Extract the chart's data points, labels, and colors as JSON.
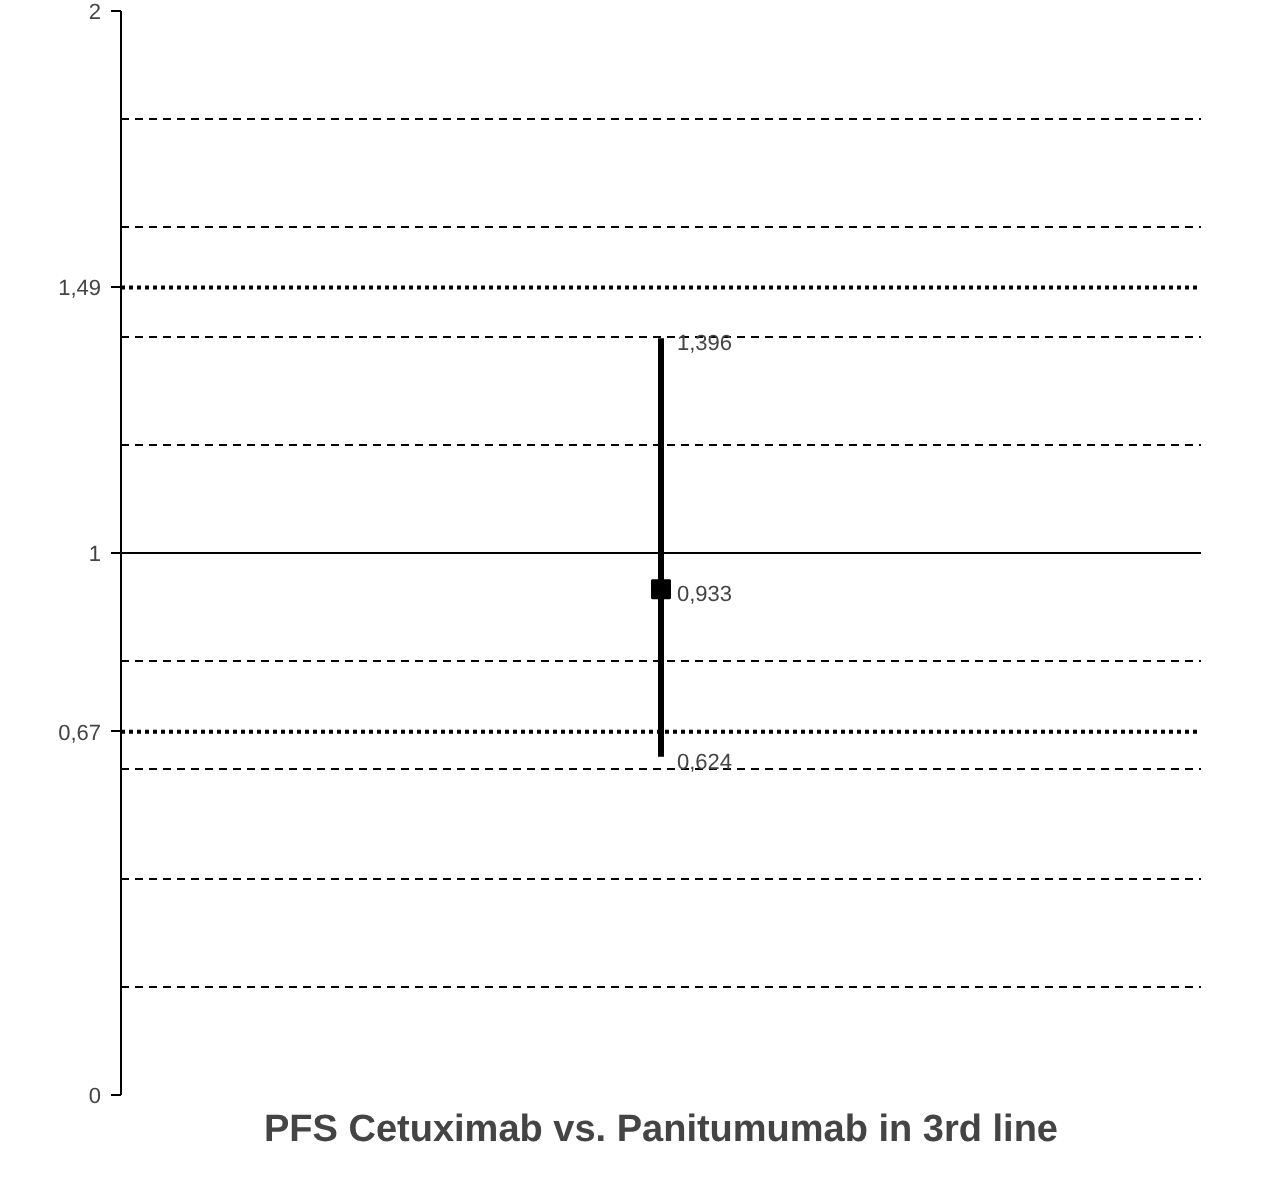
{
  "chart_data": {
    "type": "scatter",
    "title": "PFS Cetuximab vs. Panitumumab in 3rd line",
    "categories": [
      null
    ],
    "values": [
      0.933
    ],
    "errors": [
      [
        0.624,
        1.396
      ]
    ],
    "value_labels": [
      "0,933"
    ],
    "color": "#000000",
    "marker": "square",
    "ylim": [
      0,
      2
    ],
    "yticks": [
      {
        "value": 0,
        "label": "0"
      },
      {
        "value": 0.2,
        "label": null
      },
      {
        "value": 0.4,
        "label": null
      },
      {
        "value": 0.6,
        "label": null
      },
      {
        "value": 0.8,
        "label": null
      },
      {
        "value": 1,
        "label": "1"
      },
      {
        "value": 1.2,
        "label": null
      },
      {
        "value": 1.4,
        "label": null
      },
      {
        "value": 1.6,
        "label": null
      },
      {
        "value": 1.8,
        "label": null
      },
      {
        "value": 2,
        "label": "2"
      }
    ],
    "grid": "y",
    "ref_lines": [
      {
        "axis": "y",
        "value": 1,
        "line_style": "solid"
      },
      {
        "axis": "y",
        "value": 0.67,
        "line_style": "dotted",
        "label": "0,67"
      },
      {
        "axis": "y",
        "value": 1.49,
        "line_style": "dotted",
        "label": "1,49"
      }
    ],
    "annotations": [
      "1,396",
      "0,624"
    ]
  }
}
